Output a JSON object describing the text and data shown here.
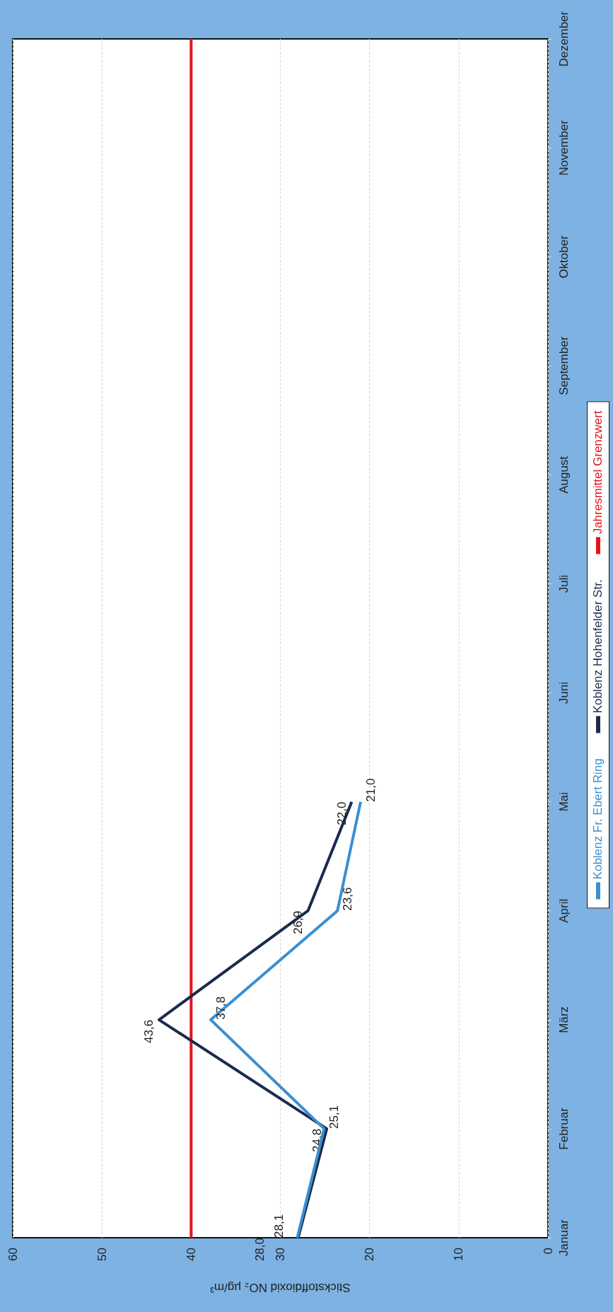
{
  "chart_data": {
    "type": "line",
    "orientation": "horizontal",
    "xlabel": "Stickstoffdioxid NO₂ µg/m³",
    "categories": [
      "Dezember",
      "November",
      "Oktober",
      "September",
      "August",
      "Juli",
      "Juni",
      "Mai",
      "April",
      "März",
      "Februar",
      "Januar"
    ],
    "series": [
      {
        "name": "Koblenz Fr. Ebert Ring",
        "color": "#3a8fd2",
        "values": [
          null,
          null,
          null,
          null,
          null,
          null,
          null,
          21.0,
          23.6,
          37.8,
          25.1,
          28.1
        ],
        "value_labels": [
          null,
          null,
          null,
          null,
          null,
          null,
          null,
          "21,0",
          "23,6",
          "37,8",
          "25,1",
          "28,1"
        ]
      },
      {
        "name": "Koblenz Hohenfelder Str.",
        "color": "#1b2a4e",
        "values": [
          null,
          null,
          null,
          null,
          null,
          null,
          null,
          22.0,
          26.9,
          43.6,
          24.8,
          28.0
        ],
        "value_labels": [
          null,
          null,
          null,
          null,
          null,
          null,
          null,
          "22,0",
          "26,9",
          "43,6",
          "24,8",
          "28,0"
        ]
      },
      {
        "name": "Jahresmittel Grenzwert",
        "color": "#e3141c",
        "values": [
          40,
          40,
          40,
          40,
          40,
          40,
          40,
          40,
          40,
          40,
          40,
          40
        ]
      }
    ],
    "xlim": [
      60,
      0
    ],
    "xticks": [
      60,
      50,
      40,
      30,
      20,
      10,
      0
    ],
    "grid": "x",
    "legend": "bottom",
    "line_style": "solid",
    "marker": "none"
  }
}
